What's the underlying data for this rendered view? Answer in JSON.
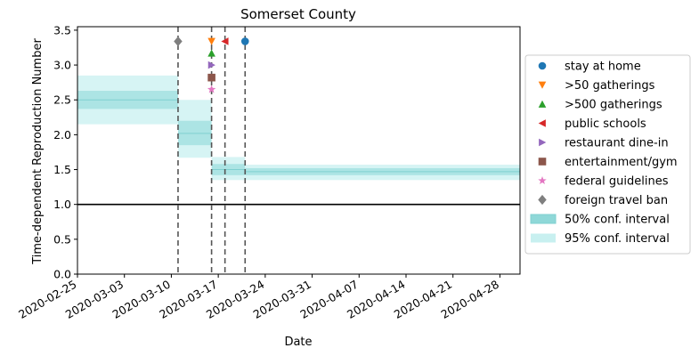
{
  "chart_data": {
    "type": "line",
    "title": "Somerset County",
    "xlabel": "Date",
    "ylabel": "Time-dependent Reproduction Number",
    "x_range": [
      "2020-02-25",
      "2020-05-01"
    ],
    "ylim": [
      0.0,
      3.55
    ],
    "x_ticks": [
      "2020-02-25",
      "2020-03-03",
      "2020-03-10",
      "2020-03-17",
      "2020-03-24",
      "2020-03-31",
      "2020-04-07",
      "2020-04-14",
      "2020-04-21",
      "2020-04-28"
    ],
    "y_ticks": [
      "0.0",
      "0.5",
      "1.0",
      "1.5",
      "2.0",
      "2.5",
      "3.0",
      "3.5"
    ],
    "reference_line": 1.0,
    "grid": false,
    "legend_position": "right, outside",
    "colors": {
      "ci50": "#8fd8d8",
      "ci95": "#c8f0f0",
      "ci_line": "#7fd0d0",
      "reference": "#000000",
      "event_line": "#555555"
    },
    "intervals": [
      {
        "start": "2020-02-25",
        "end": "2020-03-11",
        "mean": 2.5,
        "ci50": [
          2.37,
          2.63
        ],
        "ci95": [
          2.15,
          2.85
        ]
      },
      {
        "start": "2020-03-11",
        "end": "2020-03-16",
        "mean": 2.02,
        "ci50": [
          1.85,
          2.2
        ],
        "ci95": [
          1.67,
          2.5
        ]
      },
      {
        "start": "2020-03-16",
        "end": "2020-03-21",
        "mean": 1.5,
        "ci50": [
          1.42,
          1.58
        ],
        "ci95": [
          1.35,
          1.68
        ]
      },
      {
        "start": "2020-03-21",
        "end": "2020-05-01",
        "mean": 1.47,
        "ci50": [
          1.42,
          1.52
        ],
        "ci95": [
          1.35,
          1.57
        ]
      }
    ],
    "events": [
      {
        "name": "stay at home",
        "date": "2020-03-21",
        "y": 3.34,
        "marker": "circle",
        "color": "#1f77b4"
      },
      {
        "name": ">50 gatherings",
        "date": "2020-03-16",
        "y": 3.34,
        "marker": "triangle-down",
        "color": "#ff7f0e"
      },
      {
        "name": ">500 gatherings",
        "date": "2020-03-16",
        "y": 3.17,
        "marker": "triangle-up",
        "color": "#2ca02c"
      },
      {
        "name": "public schools",
        "date": "2020-03-18",
        "y": 3.34,
        "marker": "triangle-left",
        "color": "#d62728"
      },
      {
        "name": "restaurant dine-in",
        "date": "2020-03-16",
        "y": 3.0,
        "marker": "triangle-right",
        "color": "#9467bd"
      },
      {
        "name": "entertainment/gym",
        "date": "2020-03-16",
        "y": 2.82,
        "marker": "square",
        "color": "#8c564b"
      },
      {
        "name": "federal guidelines",
        "date": "2020-03-16",
        "y": 2.65,
        "marker": "star",
        "color": "#e377c2"
      },
      {
        "name": "foreign travel ban",
        "date": "2020-03-11",
        "y": 3.34,
        "marker": "diamond",
        "color": "#7f7f7f"
      }
    ],
    "event_line_dates": [
      "2020-03-11",
      "2020-03-16",
      "2020-03-18",
      "2020-03-21"
    ],
    "legend": [
      {
        "label": "stay at home",
        "marker": "circle",
        "color": "#1f77b4"
      },
      {
        "label": ">50 gatherings",
        "marker": "triangle-down",
        "color": "#ff7f0e"
      },
      {
        "label": ">500 gatherings",
        "marker": "triangle-up",
        "color": "#2ca02c"
      },
      {
        "label": "public schools",
        "marker": "triangle-left",
        "color": "#d62728"
      },
      {
        "label": "restaurant dine-in",
        "marker": "triangle-right",
        "color": "#9467bd"
      },
      {
        "label": "entertainment/gym",
        "marker": "square",
        "color": "#8c564b"
      },
      {
        "label": "federal guidelines",
        "marker": "star",
        "color": "#e377c2"
      },
      {
        "label": "foreign travel ban",
        "marker": "diamond",
        "color": "#7f7f7f"
      },
      {
        "label": "50% conf. interval",
        "marker": "patch-50",
        "color": "#8fd8d8"
      },
      {
        "label": "95% conf. interval",
        "marker": "patch-95",
        "color": "#c8f0f0"
      }
    ]
  }
}
